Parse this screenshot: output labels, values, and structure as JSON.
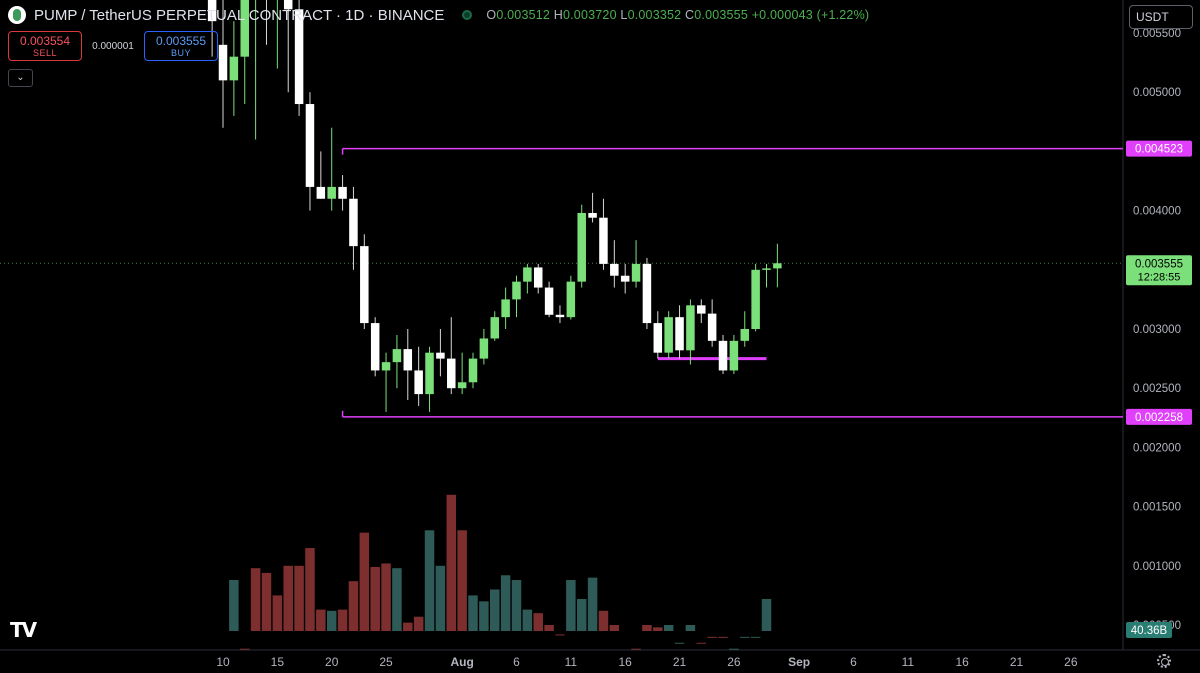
{
  "header": {
    "title": "PUMP / TetherUS PERPETUAL CONTRACT · 1D · BINANCE",
    "ohlc": {
      "o_label": "O",
      "o": "0.003512",
      "h_label": "H",
      "h": "0.003720",
      "l_label": "L",
      "l": "0.003352",
      "c_label": "C",
      "c": "0.003555",
      "change": "+0.000043 (+1.22%)"
    },
    "sell_price": "0.003554",
    "sell_label": "SELL",
    "spread": "0.000001",
    "buy_price": "0.003555",
    "buy_label": "BUY",
    "collapse_icon": "chevron-down-icon",
    "currency": "USDT",
    "logo": "TV"
  },
  "colors": {
    "up": "#7ce07a",
    "down": "#ffffff",
    "wick_up": "#7ce07a",
    "wick_down": "#d8d8d8",
    "volume_up": "#2e5b57",
    "volume_down": "#7d2f2f",
    "level_line": "#e040fb",
    "last_price_bg": "#7ce07a",
    "volume_label_bg": "#2a7d72",
    "axis_text": "#b2b5be"
  },
  "chart_data": {
    "type": "candlestick",
    "y_axis": {
      "ticks": [
        "0.005500",
        "0.005000",
        "0.004500",
        "0.004000",
        "0.003500",
        "0.003000",
        "0.002500",
        "0.002000",
        "0.001500",
        "0.001000",
        "0.000500"
      ]
    },
    "x_axis": {
      "ticks": [
        {
          "label": "10",
          "day": 0
        },
        {
          "label": "15",
          "day": 5
        },
        {
          "label": "20",
          "day": 10
        },
        {
          "label": "25",
          "day": 15
        },
        {
          "label": "Aug",
          "day": 22
        },
        {
          "label": "6",
          "day": 27
        },
        {
          "label": "11",
          "day": 32
        },
        {
          "label": "16",
          "day": 37
        },
        {
          "label": "21",
          "day": 42
        },
        {
          "label": "26",
          "day": 47
        },
        {
          "label": "Sep",
          "day": 53
        },
        {
          "label": "6",
          "day": 58
        },
        {
          "label": "11",
          "day": 63
        },
        {
          "label": "16",
          "day": 68
        },
        {
          "label": "21",
          "day": 73
        },
        {
          "label": "26",
          "day": 78
        }
      ]
    },
    "price_lines": [
      {
        "price": 0.004523,
        "label": "0.004523",
        "from_day": 11,
        "to_end": true
      },
      {
        "price": 0.002258,
        "label": "0.002258",
        "from_day": 11,
        "to_end": true
      },
      {
        "price": 0.00275,
        "from_day": 40,
        "to_day": 50
      }
    ],
    "last_price": {
      "price": 0.003555,
      "label": "0.003555",
      "countdown": "12:28:55"
    },
    "volume_label": "40.36B",
    "candles": [
      [
        -1,
        0.0072,
        0.0076,
        0.0053,
        0.0056
      ],
      [
        0,
        0.0054,
        0.0061,
        0.0047,
        0.0051
      ],
      [
        1,
        0.0051,
        0.0056,
        0.0048,
        0.0053
      ],
      [
        2,
        0.0053,
        0.006,
        0.0049,
        0.0058
      ],
      [
        3,
        0.0058,
        0.0062,
        0.0046,
        0.006
      ],
      [
        4,
        0.006,
        0.0063,
        0.0054,
        0.0058
      ],
      [
        5,
        0.0058,
        0.0061,
        0.0052,
        0.0059
      ],
      [
        6,
        0.0059,
        0.0062,
        0.005,
        0.0057
      ],
      [
        7,
        0.0057,
        0.0058,
        0.0048,
        0.0049
      ],
      [
        8,
        0.0049,
        0.005,
        0.004,
        0.0042
      ],
      [
        9,
        0.0042,
        0.0045,
        0.0041,
        0.0041
      ],
      [
        10,
        0.0041,
        0.0047,
        0.004,
        0.0042
      ],
      [
        11,
        0.0042,
        0.0043,
        0.004,
        0.0041
      ],
      [
        12,
        0.0041,
        0.0042,
        0.0035,
        0.0037
      ],
      [
        13,
        0.0037,
        0.0038,
        0.003,
        0.00305
      ],
      [
        14,
        0.00305,
        0.0031,
        0.0026,
        0.00265
      ],
      [
        15,
        0.00265,
        0.0028,
        0.0023,
        0.00272
      ],
      [
        16,
        0.00272,
        0.00295,
        0.0025,
        0.00283
      ],
      [
        17,
        0.00283,
        0.003,
        0.0024,
        0.00265
      ],
      [
        18,
        0.00265,
        0.00285,
        0.00235,
        0.00245
      ],
      [
        19,
        0.00245,
        0.00285,
        0.0023,
        0.0028
      ],
      [
        20,
        0.0028,
        0.003,
        0.0026,
        0.00275
      ],
      [
        21,
        0.00275,
        0.0031,
        0.00245,
        0.0025
      ],
      [
        22,
        0.0025,
        0.0028,
        0.00245,
        0.00255
      ],
      [
        23,
        0.00255,
        0.0028,
        0.0025,
        0.00275
      ],
      [
        24,
        0.00275,
        0.003,
        0.0027,
        0.00292
      ],
      [
        25,
        0.00292,
        0.00315,
        0.0029,
        0.0031
      ],
      [
        26,
        0.0031,
        0.00335,
        0.003,
        0.00325
      ],
      [
        27,
        0.00325,
        0.00345,
        0.0031,
        0.0034
      ],
      [
        28,
        0.0034,
        0.00355,
        0.0033,
        0.00352
      ],
      [
        29,
        0.00352,
        0.00355,
        0.0033,
        0.00335
      ],
      [
        30,
        0.00335,
        0.0034,
        0.0031,
        0.00312
      ],
      [
        31,
        0.00312,
        0.0032,
        0.00305,
        0.0031
      ],
      [
        32,
        0.0031,
        0.00345,
        0.00308,
        0.0034
      ],
      [
        33,
        0.0034,
        0.00405,
        0.00335,
        0.00398
      ],
      [
        34,
        0.00398,
        0.00415,
        0.0039,
        0.00394
      ],
      [
        35,
        0.00394,
        0.0041,
        0.0035,
        0.00355
      ],
      [
        36,
        0.00355,
        0.00375,
        0.00335,
        0.00345
      ],
      [
        37,
        0.00345,
        0.00355,
        0.0033,
        0.0034
      ],
      [
        38,
        0.0034,
        0.00375,
        0.00335,
        0.00355
      ],
      [
        39,
        0.00355,
        0.0036,
        0.003,
        0.00305
      ],
      [
        40,
        0.00305,
        0.00315,
        0.00275,
        0.0028
      ],
      [
        41,
        0.0028,
        0.00315,
        0.00275,
        0.0031
      ],
      [
        42,
        0.0031,
        0.0032,
        0.00275,
        0.00282
      ],
      [
        43,
        0.00282,
        0.00325,
        0.0027,
        0.0032
      ],
      [
        44,
        0.0032,
        0.00325,
        0.00305,
        0.00313
      ],
      [
        45,
        0.00313,
        0.00325,
        0.00285,
        0.0029
      ],
      [
        46,
        0.0029,
        0.00295,
        0.00262,
        0.00265
      ],
      [
        47,
        0.00265,
        0.00295,
        0.00262,
        0.0029
      ],
      [
        48,
        0.0029,
        0.00315,
        0.00285,
        0.003
      ],
      [
        49,
        0.003,
        0.00355,
        0.00298,
        0.0035
      ],
      [
        50,
        0.0035,
        0.00355,
        0.00335,
        0.003512
      ],
      [
        51,
        0.003512,
        0.00372,
        0.003352,
        0.003555
      ]
    ],
    "volumes": [
      [
        -1,
        0.00011,
        "down"
      ],
      [
        0,
        0.00011,
        "up"
      ],
      [
        1,
        0.00088,
        "up"
      ],
      [
        2,
        0.0003,
        "down"
      ],
      [
        3,
        0.00098,
        "down"
      ],
      [
        4,
        0.00094,
        "down"
      ],
      [
        5,
        0.00075,
        "down"
      ],
      [
        6,
        0.001,
        "down"
      ],
      [
        7,
        0.001,
        "down"
      ],
      [
        8,
        0.00115,
        "down"
      ],
      [
        9,
        0.00063,
        "down"
      ],
      [
        10,
        0.00062,
        "up"
      ],
      [
        11,
        0.00063,
        "down"
      ],
      [
        12,
        0.00087,
        "down"
      ],
      [
        13,
        0.00128,
        "down"
      ],
      [
        14,
        0.00099,
        "down"
      ],
      [
        15,
        0.00102,
        "down"
      ],
      [
        16,
        0.00098,
        "up"
      ],
      [
        17,
        0.00052,
        "down"
      ],
      [
        18,
        0.00057,
        "down"
      ],
      [
        19,
        0.0013,
        "up"
      ],
      [
        20,
        0.001,
        "up"
      ],
      [
        21,
        0.0016,
        "down"
      ],
      [
        22,
        0.0013,
        "down"
      ],
      [
        23,
        0.00075,
        "up"
      ],
      [
        24,
        0.0007,
        "up"
      ],
      [
        25,
        0.0008,
        "up"
      ],
      [
        26,
        0.00092,
        "up"
      ],
      [
        27,
        0.00088,
        "up"
      ],
      [
        28,
        0.00063,
        "up"
      ],
      [
        29,
        0.0006,
        "down"
      ],
      [
        30,
        0.0005,
        "down"
      ],
      [
        31,
        0.00042,
        "down"
      ],
      [
        32,
        0.00088,
        "up"
      ],
      [
        33,
        0.00072,
        "up"
      ],
      [
        34,
        0.0009,
        "up"
      ],
      [
        35,
        0.00062,
        "down"
      ],
      [
        36,
        0.0005,
        "down"
      ],
      [
        37,
        0.00027,
        "down"
      ],
      [
        38,
        0.0003,
        "down"
      ],
      [
        39,
        0.0005,
        "down"
      ],
      [
        40,
        0.00048,
        "down"
      ],
      [
        41,
        0.0005,
        "up"
      ],
      [
        42,
        0.00035,
        "up"
      ],
      [
        43,
        0.0005,
        "up"
      ],
      [
        44,
        0.00035,
        "down"
      ],
      [
        45,
        0.0004,
        "down"
      ],
      [
        46,
        0.0004,
        "down"
      ],
      [
        47,
        0.0003,
        "up"
      ],
      [
        48,
        0.0004,
        "up"
      ],
      [
        49,
        0.0004,
        "up"
      ],
      [
        50,
        0.00072,
        "up"
      ],
      [
        51,
        0.00018,
        "up"
      ]
    ]
  }
}
